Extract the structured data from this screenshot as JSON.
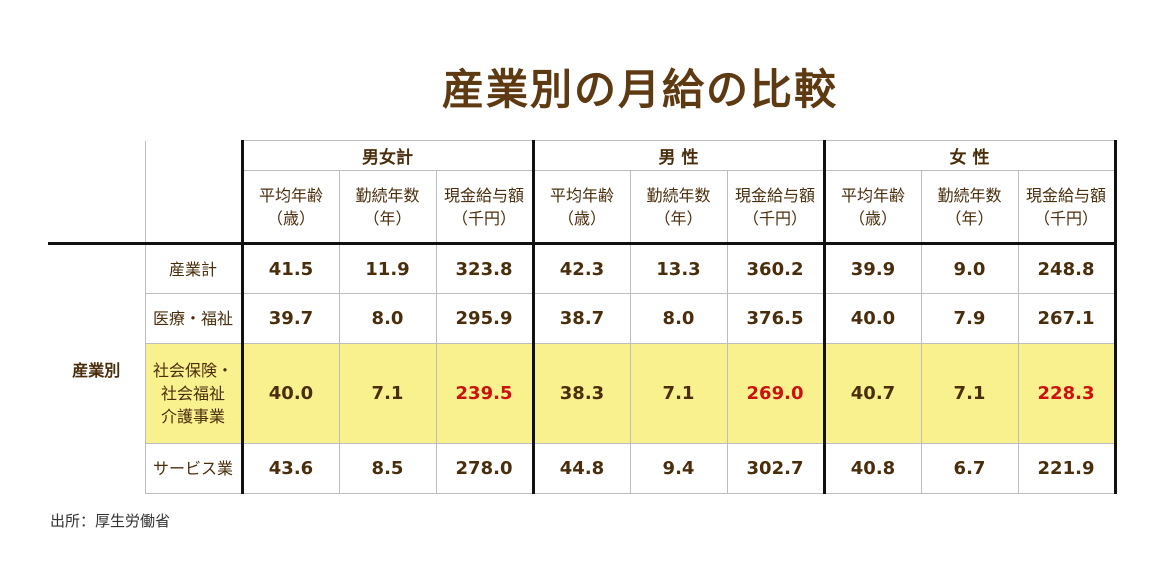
{
  "chart_data": {
    "type": "table",
    "title": "産業別の月給の比較",
    "groups": [
      "男女計",
      "男 性",
      "女 性"
    ],
    "columns": [
      "平均年齢（歳）",
      "勤続年数（年）",
      "現金給与額（千円）"
    ],
    "category_label": "産業別",
    "rows": [
      {
        "label": "産業計",
        "values": [
          "41.5",
          "11.9",
          "323.8",
          "42.3",
          "13.3",
          "360.2",
          "39.9",
          "9.0",
          "248.8"
        ]
      },
      {
        "label": "医療・福祉",
        "values": [
          "39.7",
          "8.0",
          "295.9",
          "38.7",
          "8.0",
          "376.5",
          "40.0",
          "7.9",
          "267.1"
        ]
      },
      {
        "label": "社会保険・社会福祉介護事業",
        "values": [
          "40.0",
          "7.1",
          "239.5",
          "38.3",
          "7.1",
          "269.0",
          "40.7",
          "7.1",
          "228.3"
        ],
        "highlight": true
      },
      {
        "label": "サービス業",
        "values": [
          "43.6",
          "8.5",
          "278.0",
          "44.8",
          "9.4",
          "302.7",
          "40.8",
          "6.7",
          "221.9"
        ]
      }
    ],
    "highlight_color": "#f9f08e",
    "emphasis_color": "#cc1111",
    "source": "出所：厚生労働省"
  },
  "headers": {
    "sub": [
      {
        "line1": "平均年齢",
        "line2": "（歳）"
      },
      {
        "line1": "勤続年数",
        "line2": "（年）"
      },
      {
        "line1": "現金給与額",
        "line2": "（千円）"
      }
    ]
  },
  "rowlabels": {
    "r0": "産業計",
    "r1": "医療・福祉",
    "r2_l1": "社会保険・",
    "r2_l2": "社会福祉",
    "r2_l3": "介護事業",
    "r3": "サービス業"
  }
}
